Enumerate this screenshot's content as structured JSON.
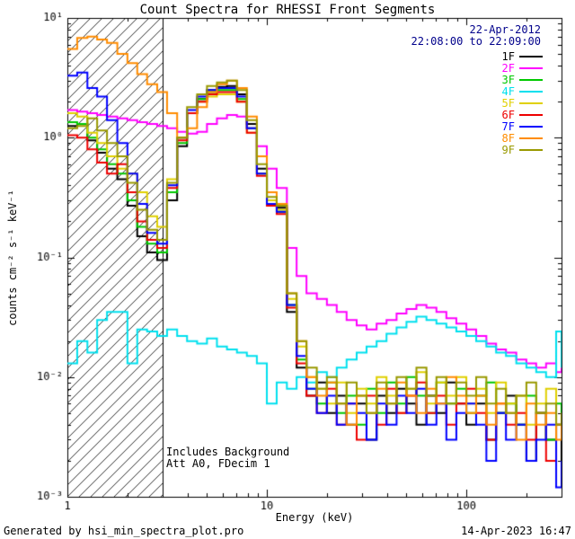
{
  "title": "Count Spectra for RHESSI Front Segments",
  "header": {
    "date": "22-Apr-2012",
    "time_range": "22:08:00 to 22:09:00",
    "date_color": "#00008b"
  },
  "annotations": [
    "Includes Background",
    "Att A0, FDecim 1"
  ],
  "footer": {
    "left": "Generated by hsi_min_spectra_plot.pro",
    "right": "14-Apr-2023 16:47"
  },
  "chart_data": {
    "type": "line",
    "mode": "histogram-step",
    "title": "Count Spectra for RHESSI Front Segments",
    "xlabel": "Energy (keV)",
    "ylabel": "counts cm⁻² s⁻¹ keV⁻¹",
    "xscale": "log",
    "yscale": "log",
    "xlim": [
      1,
      300
    ],
    "ylim": [
      0.001,
      10
    ],
    "grid": false,
    "legend_position": "top-right",
    "x_ticks": [
      {
        "value": 1,
        "label": "1"
      },
      {
        "value": 10,
        "label": "10"
      },
      {
        "value": 100,
        "label": "100"
      }
    ],
    "y_ticks": [
      {
        "value": 0.001,
        "label": "10⁻³"
      },
      {
        "value": 0.01,
        "label": "10⁻²"
      },
      {
        "value": 0.1,
        "label": "10⁻¹"
      },
      {
        "value": 1,
        "label": "10⁰"
      },
      {
        "value": 10,
        "label": "10¹"
      }
    ],
    "hatched_region": {
      "xmin": 1,
      "xmax": 3,
      "style": "diagonal-hatch"
    },
    "energies": [
      1.0,
      1.12,
      1.26,
      1.41,
      1.58,
      1.78,
      2.0,
      2.24,
      2.51,
      2.82,
      3.16,
      3.55,
      3.98,
      4.47,
      5.01,
      5.62,
      6.31,
      7.08,
      7.94,
      8.91,
      10.0,
      11.2,
      12.6,
      14.1,
      15.8,
      17.8,
      20.0,
      22.4,
      25.1,
      28.2,
      31.6,
      35.5,
      39.8,
      44.7,
      50.1,
      56.2,
      63.1,
      70.8,
      79.4,
      89.1,
      100,
      112,
      126,
      141,
      158,
      178,
      200,
      224,
      251,
      282,
      300
    ],
    "series": [
      {
        "name": "1F",
        "color": "#000000",
        "values": [
          1.25,
          1.3,
          0.95,
          0.75,
          0.55,
          0.45,
          0.27,
          0.15,
          0.11,
          0.095,
          0.3,
          0.85,
          1.6,
          2.1,
          2.5,
          2.65,
          2.7,
          2.3,
          1.3,
          0.55,
          0.3,
          0.26,
          0.035,
          0.012,
          0.007,
          0.009,
          0.005,
          0.007,
          0.004,
          0.006,
          0.003,
          0.007,
          0.005,
          0.008,
          0.006,
          0.004,
          0.007,
          0.005,
          0.009,
          0.006,
          0.004,
          0.006,
          0.003,
          0.005,
          0.007,
          0.004,
          0.002,
          0.005,
          0.003,
          0.004,
          0.002
        ]
      },
      {
        "name": "2F",
        "color": "#ff00ff",
        "values": [
          1.7,
          1.65,
          1.6,
          1.55,
          1.5,
          1.45,
          1.4,
          1.35,
          1.3,
          1.25,
          1.2,
          1.12,
          1.08,
          1.12,
          1.3,
          1.45,
          1.55,
          1.5,
          1.2,
          0.85,
          0.55,
          0.38,
          0.12,
          0.07,
          0.05,
          0.045,
          0.04,
          0.035,
          0.03,
          0.027,
          0.025,
          0.028,
          0.03,
          0.034,
          0.037,
          0.04,
          0.038,
          0.035,
          0.031,
          0.028,
          0.025,
          0.022,
          0.019,
          0.017,
          0.016,
          0.014,
          0.013,
          0.012,
          0.013,
          0.011,
          0.012
        ]
      },
      {
        "name": "3F",
        "color": "#00c800",
        "values": [
          1.35,
          1.3,
          1.0,
          0.8,
          0.6,
          0.5,
          0.3,
          0.18,
          0.13,
          0.11,
          0.35,
          0.9,
          1.6,
          2.1,
          2.4,
          2.5,
          2.5,
          2.1,
          1.2,
          0.5,
          0.28,
          0.24,
          0.04,
          0.014,
          0.008,
          0.006,
          0.009,
          0.005,
          0.007,
          0.004,
          0.008,
          0.005,
          0.009,
          0.006,
          0.01,
          0.007,
          0.005,
          0.009,
          0.006,
          0.008,
          0.005,
          0.007,
          0.009,
          0.005,
          0.006,
          0.004,
          0.007,
          0.005,
          0.003,
          0.006,
          0.004
        ]
      },
      {
        "name": "4F",
        "color": "#00e0ee",
        "values": [
          0.013,
          0.02,
          0.016,
          0.03,
          0.035,
          0.035,
          0.013,
          0.025,
          0.024,
          0.022,
          0.025,
          0.022,
          0.02,
          0.019,
          0.021,
          0.018,
          0.017,
          0.016,
          0.015,
          0.013,
          0.006,
          0.009,
          0.008,
          0.01,
          0.009,
          0.011,
          0.01,
          0.012,
          0.014,
          0.016,
          0.018,
          0.02,
          0.023,
          0.026,
          0.029,
          0.032,
          0.03,
          0.028,
          0.026,
          0.024,
          0.022,
          0.02,
          0.018,
          0.016,
          0.015,
          0.013,
          0.012,
          0.011,
          0.01,
          0.024,
          0.012
        ]
      },
      {
        "name": "5F",
        "color": "#e0d000",
        "values": [
          1.6,
          1.5,
          1.1,
          0.9,
          0.7,
          0.55,
          0.5,
          0.35,
          0.22,
          0.18,
          0.45,
          1.0,
          1.6,
          2.0,
          2.2,
          2.3,
          2.3,
          2.0,
          1.1,
          0.5,
          0.3,
          0.25,
          0.045,
          0.018,
          0.01,
          0.008,
          0.006,
          0.009,
          0.005,
          0.008,
          0.006,
          0.01,
          0.007,
          0.005,
          0.008,
          0.011,
          0.006,
          0.009,
          0.007,
          0.01,
          0.006,
          0.008,
          0.005,
          0.009,
          0.006,
          0.007,
          0.004,
          0.006,
          0.008,
          0.004,
          0.005
        ]
      },
      {
        "name": "6F",
        "color": "#ee0000",
        "values": [
          1.05,
          1.0,
          0.8,
          0.62,
          0.5,
          0.6,
          0.35,
          0.2,
          0.14,
          0.12,
          0.38,
          0.95,
          1.6,
          2.0,
          2.3,
          2.4,
          2.4,
          2.0,
          1.1,
          0.48,
          0.27,
          0.23,
          0.038,
          0.013,
          0.007,
          0.005,
          0.008,
          0.004,
          0.006,
          0.003,
          0.007,
          0.004,
          0.008,
          0.005,
          0.007,
          0.009,
          0.005,
          0.007,
          0.004,
          0.006,
          0.008,
          0.005,
          0.003,
          0.006,
          0.004,
          0.005,
          0.003,
          0.005,
          0.002,
          0.004,
          0.003
        ]
      },
      {
        "name": "7F",
        "color": "#0000ff",
        "values": [
          3.3,
          3.5,
          2.6,
          2.2,
          1.4,
          0.9,
          0.5,
          0.28,
          0.16,
          0.13,
          0.4,
          1.0,
          1.7,
          2.2,
          2.5,
          2.6,
          2.6,
          2.2,
          1.2,
          0.5,
          0.28,
          0.24,
          0.04,
          0.015,
          0.008,
          0.005,
          0.007,
          0.004,
          0.006,
          0.005,
          0.003,
          0.006,
          0.004,
          0.007,
          0.005,
          0.008,
          0.004,
          0.006,
          0.003,
          0.005,
          0.006,
          0.004,
          0.002,
          0.005,
          0.003,
          0.004,
          0.002,
          0.003,
          0.004,
          0.0012,
          0.002
        ]
      },
      {
        "name": "8F",
        "color": "#ff8c00",
        "values": [
          5.5,
          6.8,
          7.0,
          6.6,
          6.2,
          5.0,
          4.2,
          3.4,
          2.8,
          2.4,
          1.6,
          1.0,
          1.2,
          1.8,
          2.4,
          2.8,
          3.0,
          2.6,
          1.5,
          0.7,
          0.35,
          0.28,
          0.05,
          0.02,
          0.01,
          0.007,
          0.009,
          0.006,
          0.004,
          0.007,
          0.005,
          0.008,
          0.006,
          0.009,
          0.007,
          0.005,
          0.008,
          0.006,
          0.01,
          0.007,
          0.005,
          0.007,
          0.004,
          0.006,
          0.005,
          0.003,
          0.006,
          0.004,
          0.005,
          0.003,
          0.004
        ]
      },
      {
        "name": "9F",
        "color": "#999900",
        "values": [
          1.2,
          1.25,
          1.45,
          1.15,
          0.9,
          0.7,
          0.42,
          0.25,
          0.17,
          0.14,
          0.42,
          1.0,
          1.8,
          2.3,
          2.7,
          2.9,
          3.0,
          2.5,
          1.4,
          0.6,
          0.32,
          0.27,
          0.05,
          0.02,
          0.012,
          0.008,
          0.01,
          0.006,
          0.009,
          0.007,
          0.005,
          0.009,
          0.006,
          0.01,
          0.008,
          0.012,
          0.007,
          0.01,
          0.006,
          0.009,
          0.007,
          0.01,
          0.006,
          0.008,
          0.005,
          0.007,
          0.009,
          0.005,
          0.006,
          0.004,
          0.005
        ]
      }
    ]
  }
}
